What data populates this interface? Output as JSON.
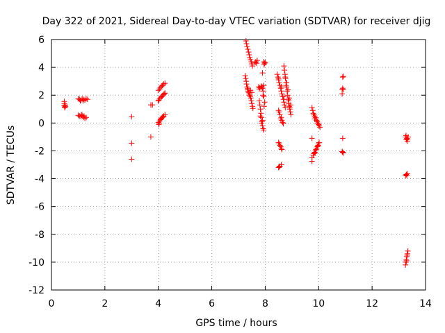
{
  "chart_data": {
    "type": "scatter",
    "title": "Day 322 of 2021, Sidereal Day-to-day VTEC variation (SDTVAR) for receiver djig",
    "xlabel": "GPS time / hours",
    "ylabel": "SDTVAR / TECUs",
    "xlim": [
      0,
      14
    ],
    "ylim": [
      -12,
      6
    ],
    "xticks": [
      0,
      2,
      4,
      6,
      8,
      10,
      12,
      14
    ],
    "yticks": [
      -12,
      -10,
      -8,
      -6,
      -4,
      -2,
      0,
      2,
      4,
      6
    ],
    "x_tick_labels": [
      "0",
      "2",
      "4",
      "6",
      "8",
      "10",
      "12",
      "14"
    ],
    "y_tick_labels": [
      "-12",
      "-10",
      "-8",
      "-6",
      "-4",
      "-2",
      "0",
      "2",
      "4",
      "6"
    ],
    "grid": true,
    "grid_style": "dotted",
    "marker": "+",
    "marker_color": "#ff0000",
    "series": [
      {
        "points": [
          [
            0.48,
            1.55
          ],
          [
            0.48,
            1.4
          ],
          [
            0.48,
            1.25
          ],
          [
            0.5,
            1.15
          ],
          [
            0.5,
            1.1
          ],
          [
            0.52,
            1.3
          ],
          [
            0.52,
            1.2
          ],
          [
            1.0,
            1.75
          ],
          [
            1.05,
            1.7
          ],
          [
            1.1,
            1.65
          ],
          [
            1.15,
            1.75
          ],
          [
            1.2,
            1.7
          ],
          [
            1.25,
            1.65
          ],
          [
            1.3,
            1.75
          ],
          [
            1.35,
            1.7
          ],
          [
            1.08,
            1.6
          ],
          [
            1.18,
            1.6
          ],
          [
            1.0,
            0.55
          ],
          [
            1.05,
            0.5
          ],
          [
            1.1,
            0.45
          ],
          [
            1.15,
            0.55
          ],
          [
            1.2,
            0.4
          ],
          [
            1.25,
            0.35
          ],
          [
            1.3,
            0.4
          ],
          [
            1.12,
            0.6
          ],
          [
            1.22,
            0.5
          ],
          [
            3.0,
            0.45
          ],
          [
            3.0,
            -1.45
          ],
          [
            3.0,
            -2.6
          ],
          [
            3.72,
            1.3
          ],
          [
            3.78,
            1.3
          ],
          [
            3.72,
            -1.0
          ],
          [
            4.0,
            2.35
          ],
          [
            4.05,
            2.45
          ],
          [
            4.08,
            2.55
          ],
          [
            4.12,
            2.65
          ],
          [
            4.15,
            2.7
          ],
          [
            4.2,
            2.8
          ],
          [
            4.25,
            2.85
          ],
          [
            4.0,
            1.6
          ],
          [
            4.05,
            1.75
          ],
          [
            4.1,
            1.85
          ],
          [
            4.15,
            1.95
          ],
          [
            4.2,
            2.05
          ],
          [
            4.25,
            2.15
          ],
          [
            4.02,
            1.65
          ],
          [
            4.12,
            1.9
          ],
          [
            4.22,
            2.1
          ],
          [
            4.0,
            0.05
          ],
          [
            4.02,
            -0.1
          ],
          [
            4.05,
            0.15
          ],
          [
            4.08,
            0.25
          ],
          [
            4.1,
            0.3
          ],
          [
            4.15,
            0.4
          ],
          [
            4.2,
            0.5
          ],
          [
            4.25,
            0.6
          ],
          [
            4.03,
            0.0
          ],
          [
            4.12,
            0.35
          ],
          [
            4.18,
            0.45
          ],
          [
            7.28,
            5.9
          ],
          [
            7.3,
            5.7
          ],
          [
            7.32,
            5.5
          ],
          [
            7.35,
            5.3
          ],
          [
            7.38,
            5.1
          ],
          [
            7.4,
            4.9
          ],
          [
            7.42,
            4.7
          ],
          [
            7.45,
            4.55
          ],
          [
            7.48,
            4.4
          ],
          [
            7.5,
            4.25
          ],
          [
            7.52,
            4.1
          ],
          [
            7.25,
            3.4
          ],
          [
            7.27,
            3.2
          ],
          [
            7.29,
            3.0
          ],
          [
            7.3,
            2.8
          ],
          [
            7.32,
            2.6
          ],
          [
            7.34,
            2.4
          ],
          [
            7.36,
            2.3
          ],
          [
            7.38,
            2.2
          ],
          [
            7.4,
            2.1
          ],
          [
            7.42,
            2.0
          ],
          [
            7.44,
            1.9
          ],
          [
            7.46,
            1.8
          ],
          [
            7.48,
            1.6
          ],
          [
            7.5,
            1.4
          ],
          [
            7.52,
            1.2
          ],
          [
            7.54,
            1.05
          ],
          [
            7.35,
            2.5
          ],
          [
            7.45,
            2.35
          ],
          [
            7.5,
            2.2
          ],
          [
            7.65,
            4.4
          ],
          [
            7.68,
            4.3
          ],
          [
            7.7,
            4.5
          ],
          [
            7.62,
            4.35
          ],
          [
            7.75,
            2.6
          ],
          [
            7.8,
            2.55
          ],
          [
            7.85,
            2.65
          ],
          [
            7.9,
            2.5
          ],
          [
            7.95,
            2.7
          ],
          [
            7.78,
            2.45
          ],
          [
            7.88,
            2.6
          ],
          [
            7.78,
            1.6
          ],
          [
            7.8,
            1.3
          ],
          [
            7.82,
            1.0
          ],
          [
            7.84,
            0.7
          ],
          [
            7.86,
            0.4
          ],
          [
            7.88,
            0.1
          ],
          [
            7.9,
            -0.2
          ],
          [
            7.92,
            -0.4
          ],
          [
            7.94,
            -0.5
          ],
          [
            7.82,
            0.5
          ],
          [
            7.86,
            0.0
          ],
          [
            7.9,
            0.2
          ],
          [
            7.9,
            3.6
          ],
          [
            7.92,
            2.3
          ],
          [
            7.95,
            1.9
          ],
          [
            7.98,
            1.5
          ],
          [
            7.96,
            1.2
          ],
          [
            7.92,
            2.0
          ],
          [
            7.95,
            4.4
          ],
          [
            7.98,
            4.3
          ],
          [
            8.0,
            4.35
          ],
          [
            7.96,
            4.2
          ],
          [
            8.45,
            3.5
          ],
          [
            8.48,
            3.3
          ],
          [
            8.5,
            3.1
          ],
          [
            8.52,
            2.9
          ],
          [
            8.55,
            2.7
          ],
          [
            8.58,
            2.5
          ],
          [
            8.6,
            2.3
          ],
          [
            8.62,
            2.1
          ],
          [
            8.65,
            1.9
          ],
          [
            8.68,
            1.7
          ],
          [
            8.7,
            1.5
          ],
          [
            8.72,
            1.3
          ],
          [
            8.75,
            1.1
          ],
          [
            8.5,
            3.2
          ],
          [
            8.6,
            2.6
          ],
          [
            8.7,
            1.9
          ],
          [
            8.5,
            0.9
          ],
          [
            8.52,
            0.8
          ],
          [
            8.55,
            0.6
          ],
          [
            8.6,
            0.4
          ],
          [
            8.62,
            0.2
          ],
          [
            8.65,
            0.05
          ],
          [
            8.68,
            -0.05
          ],
          [
            8.58,
            0.3
          ],
          [
            8.7,
            4.1
          ],
          [
            8.72,
            3.8
          ],
          [
            8.74,
            3.5
          ],
          [
            8.76,
            3.2
          ],
          [
            8.78,
            2.9
          ],
          [
            8.8,
            2.6
          ],
          [
            8.82,
            2.3
          ],
          [
            8.84,
            2.0
          ],
          [
            8.86,
            1.7
          ],
          [
            8.88,
            1.4
          ],
          [
            8.9,
            1.2
          ],
          [
            8.92,
            1.0
          ],
          [
            8.94,
            0.8
          ],
          [
            8.96,
            0.6
          ],
          [
            8.75,
            3.3
          ],
          [
            8.8,
            2.9
          ],
          [
            8.85,
            2.4
          ],
          [
            8.9,
            1.8
          ],
          [
            8.95,
            1.3
          ],
          [
            8.78,
            2.7
          ],
          [
            8.88,
            1.6
          ],
          [
            8.92,
            1.1
          ],
          [
            8.5,
            -1.4
          ],
          [
            8.52,
            -1.5
          ],
          [
            8.55,
            -1.6
          ],
          [
            8.58,
            -1.7
          ],
          [
            8.6,
            -1.8
          ],
          [
            8.62,
            -1.9
          ],
          [
            8.5,
            -3.2
          ],
          [
            8.55,
            -3.1
          ],
          [
            8.6,
            -3.0
          ],
          [
            8.53,
            -3.15
          ],
          [
            9.75,
            1.1
          ],
          [
            9.78,
            0.9
          ],
          [
            9.8,
            0.7
          ],
          [
            9.82,
            0.6
          ],
          [
            9.85,
            0.5
          ],
          [
            9.88,
            0.4
          ],
          [
            9.9,
            0.3
          ],
          [
            9.92,
            0.2
          ],
          [
            9.95,
            0.1
          ],
          [
            9.98,
            0.0
          ],
          [
            10.0,
            -0.1
          ],
          [
            10.02,
            -0.2
          ],
          [
            10.05,
            -0.3
          ],
          [
            9.85,
            0.3
          ],
          [
            9.95,
            0.0
          ],
          [
            9.75,
            -1.1
          ],
          [
            9.75,
            -2.5
          ],
          [
            9.75,
            -2.75
          ],
          [
            9.8,
            -2.3
          ],
          [
            9.82,
            -2.2
          ],
          [
            9.85,
            -2.1
          ],
          [
            9.88,
            -2.0
          ],
          [
            9.9,
            -1.9
          ],
          [
            9.92,
            -1.8
          ],
          [
            9.95,
            -1.7
          ],
          [
            9.98,
            -1.6
          ],
          [
            10.0,
            -1.5
          ],
          [
            10.02,
            -1.4
          ],
          [
            9.87,
            -2.15
          ],
          [
            9.97,
            -1.65
          ],
          [
            10.9,
            3.3
          ],
          [
            10.92,
            3.35
          ],
          [
            10.88,
            2.4
          ],
          [
            10.9,
            2.5
          ],
          [
            10.92,
            2.4
          ],
          [
            10.88,
            2.1
          ],
          [
            10.9,
            -1.1
          ],
          [
            10.9,
            -2.1
          ],
          [
            10.92,
            -2.15
          ],
          [
            10.88,
            -2.05
          ],
          [
            13.25,
            -1.0
          ],
          [
            13.3,
            -1.1
          ],
          [
            13.35,
            -1.0
          ],
          [
            13.28,
            -1.2
          ],
          [
            13.32,
            -1.3
          ],
          [
            13.27,
            -0.9
          ],
          [
            13.33,
            -1.15
          ],
          [
            13.25,
            -3.8
          ],
          [
            13.28,
            -3.7
          ],
          [
            13.3,
            -3.75
          ],
          [
            13.32,
            -3.65
          ],
          [
            13.25,
            -10.2
          ],
          [
            13.27,
            -10.0
          ],
          [
            13.28,
            -9.8
          ],
          [
            13.3,
            -9.6
          ],
          [
            13.32,
            -9.4
          ],
          [
            13.34,
            -9.2
          ],
          [
            13.29,
            -9.9
          ],
          [
            13.31,
            -9.5
          ]
        ]
      }
    ]
  }
}
